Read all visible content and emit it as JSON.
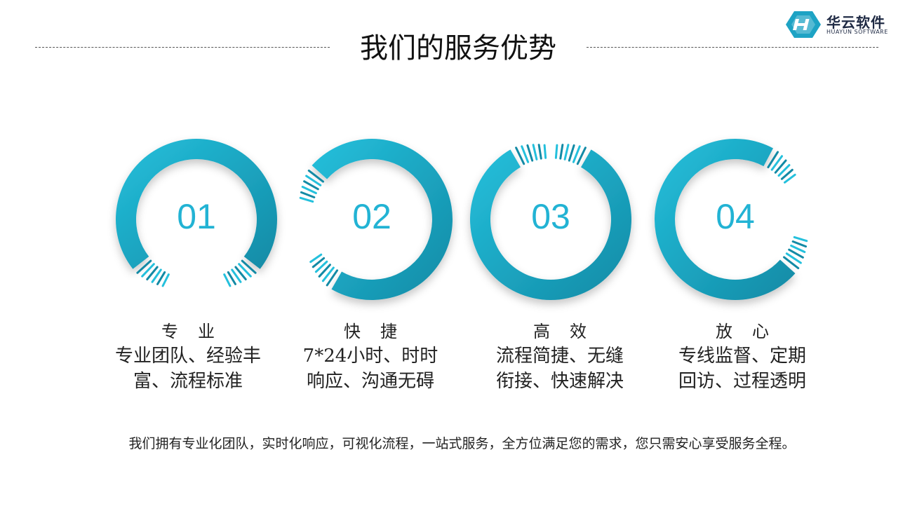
{
  "logo": {
    "name_cn": "华云软件",
    "name_en": "HUAYUN SOFTWARE",
    "mark_color": "#1ea3c4"
  },
  "page": {
    "title": "我们的服务优势"
  },
  "colors": {
    "ring_light": "#24c0dc",
    "ring_dark": "#138aa5",
    "num": "#22b3d4"
  },
  "items": [
    {
      "num": "01",
      "title": "专业",
      "desc": [
        "专业团队、经验丰",
        "富、流程标准"
      ]
    },
    {
      "num": "02",
      "title": "快捷",
      "desc": [
        "7*24小时、时时",
        "响应、沟通无碍"
      ]
    },
    {
      "num": "03",
      "title": "高效",
      "desc": [
        "流程简捷、无缝",
        "衔接、快速解决"
      ]
    },
    {
      "num": "04",
      "title": "放心",
      "desc": [
        "专线监督、定期",
        "回访、过程透明"
      ]
    }
  ],
  "footer": {
    "text": "我们拥有专业化团队，实时化响应，可视化流程，一站式服务，全方位满足您的需求，您只需安心享受服务全程。"
  }
}
